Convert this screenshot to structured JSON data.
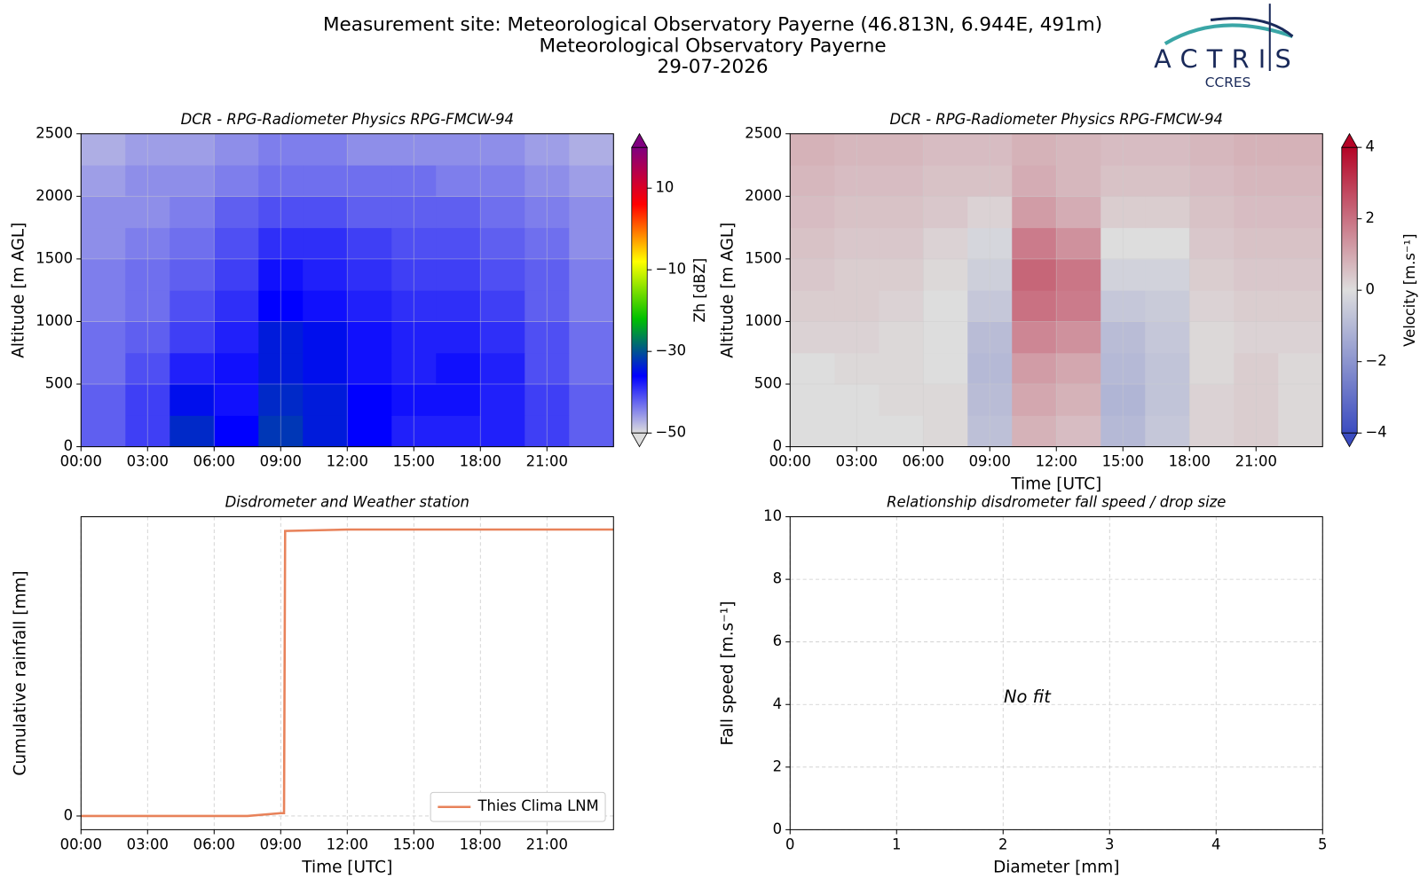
{
  "header": {
    "lines": [
      "Measurement site: Meteorological Observatory Payerne (46.813N, 6.944E, 491m)",
      "Meteorological Observatory Payerne",
      "29-07-2026"
    ],
    "logo": "ACTRIS",
    "logo_sub": "CCRES"
  },
  "chart_data": [
    {
      "type": "heatmap",
      "title": "DCR - RPG-Radiometer Physics RPG-FMCW-94",
      "ylabel": "Altitude [m AGL]",
      "xlim": [
        0,
        24
      ],
      "xticks": [
        {
          "value": 0,
          "label": "00:00"
        },
        {
          "value": 3,
          "label": "03:00"
        },
        {
          "value": 6,
          "label": "06:00"
        },
        {
          "value": 9,
          "label": "09:00"
        },
        {
          "value": 12,
          "label": "12:00"
        },
        {
          "value": 15,
          "label": "15:00"
        },
        {
          "value": 18,
          "label": "18:00"
        },
        {
          "value": 21,
          "label": "21:00"
        }
      ],
      "ylim": [
        0,
        2500
      ],
      "yticks": [
        0,
        500,
        1000,
        1500,
        2000,
        2500
      ],
      "grid": true,
      "x_bins": [
        0,
        2,
        4,
        6,
        8,
        10,
        12,
        14,
        16,
        18,
        20,
        22,
        24
      ],
      "y_bins": [
        0,
        250,
        500,
        750,
        1000,
        1250,
        1500,
        1750,
        2000,
        2250,
        2500
      ],
      "z": [
        [
          -42,
          -40,
          -33,
          -36,
          -32,
          -34,
          -36,
          -38,
          -38,
          -38,
          -40,
          -42
        ],
        [
          -42,
          -40,
          -35,
          -37,
          -33,
          -34,
          -36,
          -37,
          -37,
          -38,
          -40,
          -42
        ],
        [
          -43,
          -41,
          -38,
          -37,
          -34,
          -35,
          -37,
          -38,
          -37,
          -38,
          -41,
          -43
        ],
        [
          -43,
          -42,
          -40,
          -38,
          -34,
          -35,
          -37,
          -38,
          -38,
          -39,
          -41,
          -43
        ],
        [
          -44,
          -43,
          -41,
          -39,
          -36,
          -37,
          -38,
          -39,
          -39,
          -40,
          -42,
          -44
        ],
        [
          -44,
          -43,
          -42,
          -40,
          -37,
          -38,
          -39,
          -40,
          -40,
          -41,
          -42,
          -44
        ],
        [
          -45,
          -44,
          -43,
          -41,
          -39,
          -39,
          -40,
          -41,
          -41,
          -42,
          -43,
          -45
        ],
        [
          -45,
          -45,
          -44,
          -42,
          -41,
          -41,
          -42,
          -42,
          -42,
          -43,
          -44,
          -45
        ],
        [
          -46,
          -45,
          -45,
          -44,
          -43,
          -43,
          -43,
          -43,
          -44,
          -44,
          -45,
          -46
        ],
        [
          -47,
          -46,
          -46,
          -45,
          -44,
          -44,
          -45,
          -45,
          -45,
          -45,
          -46,
          -47
        ]
      ],
      "colorbar": {
        "label": "Zh [dBZ]",
        "clim": [
          -50,
          20
        ],
        "ticks": [
          {
            "value": -50,
            "label": "−50"
          },
          {
            "value": -30,
            "label": "−30"
          },
          {
            "value": -10,
            "label": "−10"
          },
          10
        ],
        "colormap": [
          "#dddddd",
          "#0000ff",
          "#00c000",
          "#ffff00",
          "#ff0000",
          "#800080"
        ]
      }
    },
    {
      "type": "heatmap",
      "title": "DCR - RPG-Radiometer Physics RPG-FMCW-94",
      "ylabel": "Altitude [m AGL]",
      "xlabel": "Time [UTC]",
      "xlim": [
        0,
        24
      ],
      "xticks": [
        {
          "value": 0,
          "label": "00:00"
        },
        {
          "value": 3,
          "label": "03:00"
        },
        {
          "value": 6,
          "label": "06:00"
        },
        {
          "value": 9,
          "label": "09:00"
        },
        {
          "value": 12,
          "label": "12:00"
        },
        {
          "value": 15,
          "label": "15:00"
        },
        {
          "value": 18,
          "label": "18:00"
        },
        {
          "value": 21,
          "label": "21:00"
        }
      ],
      "ylim": [
        0,
        2500
      ],
      "yticks": [
        0,
        500,
        1000,
        1500,
        2000,
        2500
      ],
      "grid": true,
      "x_bins": [
        0,
        2,
        4,
        6,
        8,
        10,
        12,
        14,
        16,
        18,
        20,
        22,
        24
      ],
      "y_bins": [
        0,
        250,
        500,
        750,
        1000,
        1250,
        1500,
        1750,
        2000,
        2250,
        2500
      ],
      "z": [
        [
          0,
          0,
          0,
          0.1,
          -0.8,
          0.8,
          0.6,
          -1.0,
          -0.6,
          0.2,
          0.3,
          0.1
        ],
        [
          0,
          0,
          0.1,
          0.1,
          -0.9,
          1.0,
          0.8,
          -1.1,
          -0.7,
          0.2,
          0.3,
          0.1
        ],
        [
          0,
          0.1,
          0.1,
          0,
          -1.0,
          1.2,
          1.0,
          -1.0,
          -0.7,
          0.1,
          0.3,
          0.1
        ],
        [
          0.2,
          0.2,
          0.1,
          0,
          -0.9,
          1.6,
          1.4,
          -0.9,
          -0.6,
          0.1,
          0.2,
          0.2
        ],
        [
          0.3,
          0.3,
          0.2,
          0,
          -0.6,
          2.0,
          1.8,
          -0.6,
          -0.5,
          0.2,
          0.3,
          0.3
        ],
        [
          0.4,
          0.3,
          0.3,
          0.1,
          -0.4,
          2.2,
          1.9,
          -0.3,
          -0.3,
          0.3,
          0.4,
          0.4
        ],
        [
          0.5,
          0.4,
          0.4,
          0.2,
          -0.2,
          1.8,
          1.4,
          0,
          0,
          0.4,
          0.5,
          0.5
        ],
        [
          0.6,
          0.5,
          0.5,
          0.4,
          0.2,
          1.2,
          0.9,
          0.3,
          0.3,
          0.5,
          0.6,
          0.6
        ],
        [
          0.7,
          0.6,
          0.6,
          0.5,
          0.5,
          0.9,
          0.7,
          0.5,
          0.5,
          0.6,
          0.7,
          0.7
        ],
        [
          0.8,
          0.7,
          0.7,
          0.6,
          0.6,
          0.8,
          0.7,
          0.6,
          0.6,
          0.7,
          0.8,
          0.8
        ]
      ],
      "colorbar": {
        "label": "Velocity [m.s⁻¹]",
        "clim": [
          -4,
          4
        ],
        "ticks": [
          {
            "value": -4,
            "label": "−4"
          },
          {
            "value": -2,
            "label": "−2"
          },
          0,
          2,
          4
        ],
        "colormap": [
          "#3b4cc0",
          "#dddddd",
          "#b40426"
        ]
      }
    },
    {
      "type": "line",
      "title": "Disdrometer and Weather station",
      "ylabel": "Cumulative rainfall [mm]",
      "xlabel": "Time [UTC]",
      "xlim": [
        0,
        24
      ],
      "xticks": [
        {
          "value": 0,
          "label": "00:00"
        },
        {
          "value": 3,
          "label": "03:00"
        },
        {
          "value": 6,
          "label": "06:00"
        },
        {
          "value": 9,
          "label": "09:00"
        },
        {
          "value": 12,
          "label": "12:00"
        },
        {
          "value": 15,
          "label": "15:00"
        },
        {
          "value": 18,
          "label": "18:00"
        },
        {
          "value": 21,
          "label": "21:00"
        }
      ],
      "ylim": [
        -0.48,
        10.5
      ],
      "yticks": [
        0
      ],
      "grid": true,
      "legend": "lower right",
      "x": [
        0,
        7.5,
        9.0,
        9.15,
        9.2,
        12,
        24
      ],
      "series": [
        {
          "name": "Thies Clima LNM",
          "color": "#e8825a",
          "values": [
            0,
            0,
            0.1,
            0.1,
            10,
            10.05,
            10.05
          ]
        }
      ]
    },
    {
      "type": "scatter",
      "title": "Relationship disdrometer fall speed / drop size",
      "xlabel": "Diameter [mm]",
      "ylabel": "Fall speed [m.s⁻¹]",
      "xlim": [
        0,
        5
      ],
      "xticks": [
        0,
        1,
        2,
        3,
        4,
        5
      ],
      "ylim": [
        0,
        10
      ],
      "yticks": [
        0,
        2,
        4,
        6,
        8,
        10
      ],
      "grid": true,
      "annotation": "No fit"
    }
  ]
}
